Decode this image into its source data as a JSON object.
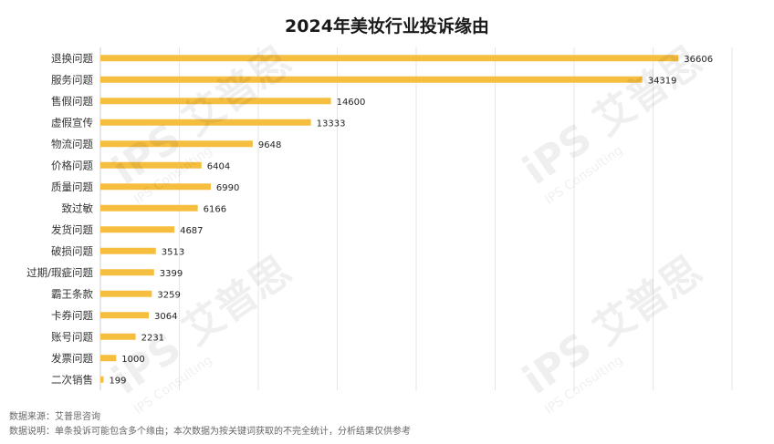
{
  "title": "2024年美妆行业投诉缘由",
  "chart_data": {
    "type": "bar",
    "orientation": "horizontal",
    "title": "2024年美妆行业投诉缘由",
    "categories": [
      "退换问题",
      "服务问题",
      "售假问题",
      "虚假宣传",
      "物流问题",
      "价格问题",
      "质量问题",
      "致过敏",
      "发货问题",
      "破损问题",
      "过期/瑕疵问题",
      "霸王条款",
      "卡券问题",
      "账号问题",
      "发票问题",
      "二次销售"
    ],
    "values": [
      36606,
      34319,
      14600,
      13333,
      9648,
      6404,
      6990,
      6166,
      4687,
      3513,
      3399,
      3259,
      3064,
      2231,
      1000,
      199
    ],
    "xlim": [
      0,
      40000
    ],
    "grid": true,
    "bar_color": "#F6BE3F"
  },
  "watermark": {
    "brand": "艾普思",
    "sub": "IPS Consulting",
    "logo": "iPS"
  },
  "footer": {
    "source": "数据来源：艾普思咨询",
    "note": "数据说明：单条投诉可能包含多个缘由；本次数据为按关键词获取的不完全统计，分析结果仅供参考"
  }
}
